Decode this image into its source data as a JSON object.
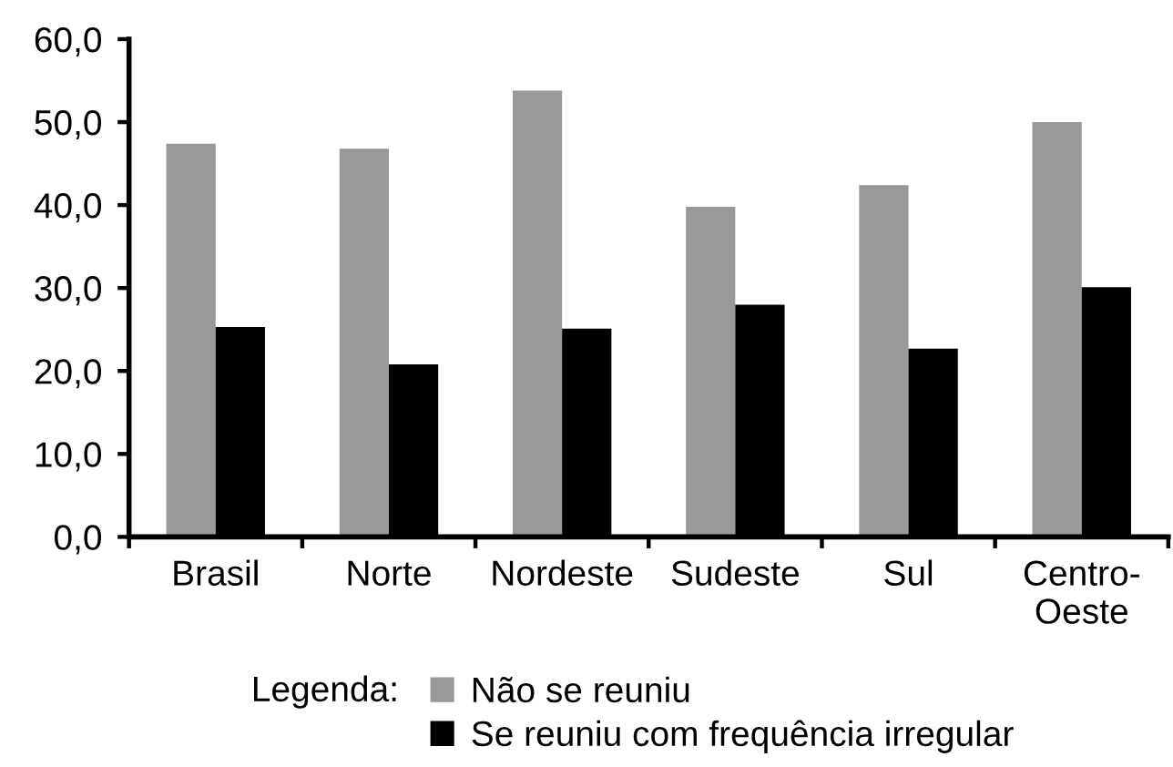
{
  "chart_data": {
    "type": "bar",
    "categories": [
      "Brasil",
      "Norte",
      "Nordeste",
      "Sudeste",
      "Sul",
      "Centro-Oeste"
    ],
    "series": [
      {
        "name": "Não se reuniu",
        "color": "#999999",
        "values": [
          47.4,
          46.8,
          53.8,
          39.8,
          42.4,
          50.0
        ]
      },
      {
        "name": "Se reuniu com frequência irregular",
        "color": "#000000",
        "values": [
          25.3,
          20.8,
          25.1,
          28.0,
          22.7,
          30.1
        ]
      }
    ],
    "ylim": [
      0,
      60
    ],
    "yticks": [
      {
        "value": 0,
        "label": "0,0"
      },
      {
        "value": 10,
        "label": "10,0"
      },
      {
        "value": 20,
        "label": "20,0"
      },
      {
        "value": 30,
        "label": "30,0"
      },
      {
        "value": 40,
        "label": "40,0"
      },
      {
        "value": 50,
        "label": "50,0"
      },
      {
        "value": 60,
        "label": "60,0"
      }
    ],
    "legend": "bottom",
    "legend_title": "Legenda:"
  }
}
